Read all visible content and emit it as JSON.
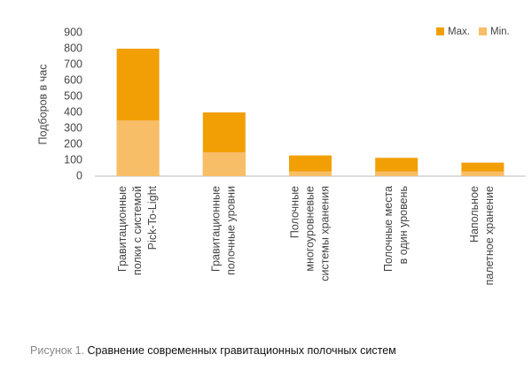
{
  "chart_data": {
    "type": "bar",
    "ylabel": "Подборов в час",
    "categories": [
      [
        "Гравитационные",
        "полки с системой",
        "Pick-To-Light"
      ],
      [
        "Гравитационные",
        "полочные уровни"
      ],
      [
        "Полочные",
        "многоуровневые",
        "системы хранения"
      ],
      [
        "Полочные места",
        "в один уровень"
      ],
      [
        "Напольное",
        "палетное хранение"
      ]
    ],
    "series": [
      {
        "name": "Max.",
        "color": "#f29f05",
        "values": [
          800,
          400,
          130,
          115,
          85
        ]
      },
      {
        "name": "Min.",
        "color": "#f8bd67",
        "values": [
          350,
          150,
          30,
          30,
          30
        ]
      }
    ],
    "ylim": [
      0,
      900
    ],
    "yticks": [
      0,
      100,
      200,
      300,
      400,
      500,
      600,
      700,
      800,
      900
    ],
    "legend": "top-right",
    "grid": false
  },
  "caption": {
    "label": "Рисунок 1.",
    "text": "Сравнение современных гравитационных полочных систем"
  }
}
